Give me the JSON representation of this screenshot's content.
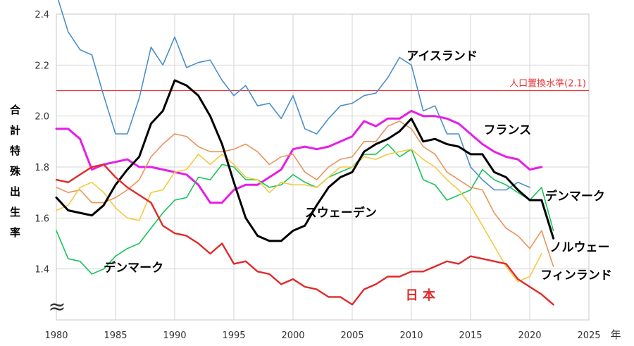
{
  "chart_data": {
    "type": "line",
    "ylabel": "合計特殊出生率",
    "xlabel_unit": "年",
    "xlim": [
      1980,
      2025
    ],
    "ylim": [
      1.2,
      2.4
    ],
    "x_ticks": [
      "1980",
      "1985",
      "1990",
      "1995",
      "2000",
      "2005",
      "2010",
      "2015",
      "2020",
      "2025"
    ],
    "y_ticks": [
      "1.4",
      "1.6",
      "1.8",
      "2.0",
      "2.2",
      "2.4"
    ],
    "axis_break_symbol": "≈",
    "grid": true,
    "reference_line": {
      "label": "人口置換水準(2.1)",
      "value": 2.1,
      "color": "#e8363a"
    },
    "series": [
      {
        "name": "アイスランド",
        "color": "#4a8fc9",
        "width": 1.6,
        "x": [
          1980,
          1981,
          1982,
          1983,
          1984,
          1985,
          1986,
          1987,
          1988,
          1989,
          1990,
          1991,
          1992,
          1993,
          1994,
          1995,
          1996,
          1997,
          1998,
          1999,
          2000,
          2001,
          2002,
          2003,
          2004,
          2005,
          2006,
          2007,
          2008,
          2009,
          2010,
          2011,
          2012,
          2013,
          2014,
          2015,
          2016,
          2017,
          2018,
          2019,
          2020
        ],
        "values": [
          2.48,
          2.33,
          2.26,
          2.24,
          2.08,
          1.93,
          1.93,
          2.07,
          2.27,
          2.2,
          2.31,
          2.19,
          2.21,
          2.22,
          2.14,
          2.08,
          2.12,
          2.04,
          2.05,
          1.99,
          2.08,
          1.95,
          1.93,
          1.99,
          2.04,
          2.05,
          2.08,
          2.09,
          2.15,
          2.23,
          2.2,
          2.02,
          2.04,
          1.93,
          1.93,
          1.8,
          1.75,
          1.71,
          1.71,
          1.74,
          1.72
        ]
      },
      {
        "name": "フランス",
        "color": "#e61ee6",
        "width": 3,
        "x": [
          1980,
          1981,
          1982,
          1983,
          1984,
          1985,
          1986,
          1987,
          1988,
          1989,
          1990,
          1991,
          1992,
          1993,
          1994,
          1995,
          1996,
          1997,
          1998,
          1999,
          2000,
          2001,
          2002,
          2003,
          2004,
          2005,
          2006,
          2007,
          2008,
          2009,
          2010,
          2011,
          2012,
          2013,
          2014,
          2015,
          2016,
          2017,
          2018,
          2019,
          2020,
          2021
        ],
        "values": [
          1.95,
          1.95,
          1.91,
          1.79,
          1.81,
          1.82,
          1.83,
          1.8,
          1.8,
          1.79,
          1.78,
          1.77,
          1.73,
          1.66,
          1.66,
          1.71,
          1.73,
          1.73,
          1.76,
          1.79,
          1.87,
          1.88,
          1.87,
          1.88,
          1.9,
          1.92,
          1.98,
          1.96,
          1.99,
          1.99,
          2.02,
          2.0,
          2.0,
          1.99,
          1.97,
          1.93,
          1.89,
          1.86,
          1.84,
          1.83,
          1.79,
          1.8
        ]
      },
      {
        "name": "デンマーク",
        "color": "#19c35a",
        "width": 1.6,
        "x": [
          1980,
          1981,
          1982,
          1983,
          1984,
          1985,
          1986,
          1987,
          1988,
          1989,
          1990,
          1991,
          1992,
          1993,
          1994,
          1995,
          1996,
          1997,
          1998,
          1999,
          2000,
          2001,
          2002,
          2003,
          2004,
          2005,
          2006,
          2007,
          2008,
          2009,
          2010,
          2011,
          2012,
          2013,
          2014,
          2015,
          2016,
          2017,
          2018,
          2019,
          2020,
          2021,
          2022
        ],
        "values": [
          1.55,
          1.44,
          1.43,
          1.38,
          1.4,
          1.45,
          1.48,
          1.5,
          1.56,
          1.62,
          1.67,
          1.68,
          1.76,
          1.75,
          1.81,
          1.8,
          1.75,
          1.75,
          1.72,
          1.73,
          1.77,
          1.74,
          1.72,
          1.76,
          1.78,
          1.8,
          1.85,
          1.85,
          1.89,
          1.84,
          1.87,
          1.75,
          1.73,
          1.67,
          1.69,
          1.71,
          1.79,
          1.75,
          1.73,
          1.7,
          1.67,
          1.72,
          1.55
        ]
      },
      {
        "name": "ノルウェー",
        "color": "#e8945a",
        "width": 1.6,
        "x": [
          1980,
          1981,
          1982,
          1983,
          1984,
          1985,
          1986,
          1987,
          1988,
          1989,
          1990,
          1991,
          1992,
          1993,
          1994,
          1995,
          1996,
          1997,
          1998,
          1999,
          2000,
          2001,
          2002,
          2003,
          2004,
          2005,
          2006,
          2007,
          2008,
          2009,
          2010,
          2011,
          2012,
          2013,
          2014,
          2015,
          2016,
          2017,
          2018,
          2019,
          2020,
          2021,
          2022
        ],
        "values": [
          1.72,
          1.7,
          1.71,
          1.66,
          1.66,
          1.68,
          1.71,
          1.75,
          1.84,
          1.89,
          1.93,
          1.92,
          1.88,
          1.86,
          1.86,
          1.87,
          1.89,
          1.86,
          1.81,
          1.84,
          1.85,
          1.78,
          1.75,
          1.8,
          1.83,
          1.84,
          1.9,
          1.9,
          1.96,
          1.98,
          1.95,
          1.88,
          1.85,
          1.78,
          1.75,
          1.72,
          1.71,
          1.62,
          1.56,
          1.53,
          1.48,
          1.55,
          1.41
        ]
      },
      {
        "name": "フィンランド",
        "color": "#f5c842",
        "width": 1.6,
        "x": [
          1980,
          1981,
          1982,
          1983,
          1984,
          1985,
          1986,
          1987,
          1988,
          1989,
          1990,
          1991,
          1992,
          1993,
          1994,
          1995,
          1996,
          1997,
          1998,
          1999,
          2000,
          2001,
          2002,
          2003,
          2004,
          2005,
          2006,
          2007,
          2008,
          2009,
          2010,
          2011,
          2012,
          2013,
          2014,
          2015,
          2016,
          2017,
          2018,
          2019,
          2020,
          2021
        ],
        "values": [
          1.63,
          1.65,
          1.72,
          1.74,
          1.7,
          1.64,
          1.6,
          1.59,
          1.7,
          1.71,
          1.78,
          1.79,
          1.85,
          1.81,
          1.85,
          1.81,
          1.76,
          1.75,
          1.7,
          1.74,
          1.73,
          1.73,
          1.72,
          1.76,
          1.8,
          1.8,
          1.84,
          1.83,
          1.85,
          1.86,
          1.87,
          1.83,
          1.8,
          1.75,
          1.71,
          1.65,
          1.57,
          1.49,
          1.41,
          1.35,
          1.37,
          1.46
        ]
      },
      {
        "name": "スウェーデン",
        "color": "#000000",
        "width": 3,
        "x": [
          1980,
          1981,
          1982,
          1983,
          1984,
          1985,
          1986,
          1987,
          1988,
          1989,
          1990,
          1991,
          1992,
          1993,
          1994,
          1995,
          1996,
          1997,
          1998,
          1999,
          2000,
          2001,
          2002,
          2003,
          2004,
          2005,
          2006,
          2007,
          2008,
          2009,
          2010,
          2011,
          2012,
          2013,
          2014,
          2015,
          2016,
          2017,
          2018,
          2019,
          2020,
          2021,
          2022
        ],
        "values": [
          1.68,
          1.63,
          1.62,
          1.61,
          1.65,
          1.73,
          1.79,
          1.84,
          1.97,
          2.02,
          2.14,
          2.12,
          2.08,
          2.0,
          1.89,
          1.74,
          1.6,
          1.53,
          1.51,
          1.51,
          1.55,
          1.57,
          1.65,
          1.72,
          1.76,
          1.78,
          1.86,
          1.89,
          1.91,
          1.94,
          1.99,
          1.9,
          1.91,
          1.89,
          1.88,
          1.85,
          1.85,
          1.78,
          1.76,
          1.71,
          1.67,
          1.67,
          1.52
        ]
      },
      {
        "name": "日 本",
        "color": "#e02a2a",
        "width": 2.4,
        "x": [
          1980,
          1981,
          1982,
          1983,
          1984,
          1985,
          1986,
          1987,
          1988,
          1989,
          1990,
          1991,
          1992,
          1993,
          1994,
          1995,
          1996,
          1997,
          1998,
          1999,
          2000,
          2001,
          2002,
          2003,
          2004,
          2005,
          2006,
          2007,
          2008,
          2009,
          2010,
          2011,
          2012,
          2013,
          2014,
          2015,
          2016,
          2017,
          2018,
          2019,
          2020,
          2021,
          2022
        ],
        "values": [
          1.75,
          1.74,
          1.77,
          1.8,
          1.81,
          1.76,
          1.72,
          1.69,
          1.66,
          1.57,
          1.54,
          1.53,
          1.5,
          1.46,
          1.5,
          1.42,
          1.43,
          1.39,
          1.38,
          1.34,
          1.36,
          1.33,
          1.32,
          1.29,
          1.29,
          1.26,
          1.32,
          1.34,
          1.37,
          1.37,
          1.39,
          1.39,
          1.41,
          1.43,
          1.42,
          1.45,
          1.44,
          1.43,
          1.42,
          1.36,
          1.33,
          1.3,
          1.26
        ]
      }
    ],
    "labels": [
      {
        "text": "アイスランド",
        "series": "アイスランド",
        "color": "#000000",
        "x": 2009.6,
        "y": 2.22
      },
      {
        "text": "フランス",
        "series": "フランス",
        "color": "#000000",
        "x": 2016.1,
        "y": 1.93
      },
      {
        "text": "デンマーク",
        "series": "デンマーク",
        "color": "#000000",
        "x": 2021.3,
        "y": 1.67
      },
      {
        "text": "デンマーク",
        "series": "デンマーク",
        "color": "#000000",
        "x": 1984.0,
        "y": 1.39
      },
      {
        "text": "スウェーデン",
        "series": "スウェーデン",
        "color": "#000000",
        "x": 2001.0,
        "y": 1.605
      },
      {
        "text": "ノルウェー",
        "series": "ノルウェー",
        "color": "#000000",
        "x": 2021.7,
        "y": 1.47
      },
      {
        "text": "フィンランド",
        "series": "フィンランド",
        "color": "#000000",
        "x": 2020.9,
        "y": 1.36
      },
      {
        "text": "日 本",
        "series": "日 本",
        "color": "#e02a2a",
        "x": 2009.5,
        "y": 1.28
      }
    ]
  }
}
